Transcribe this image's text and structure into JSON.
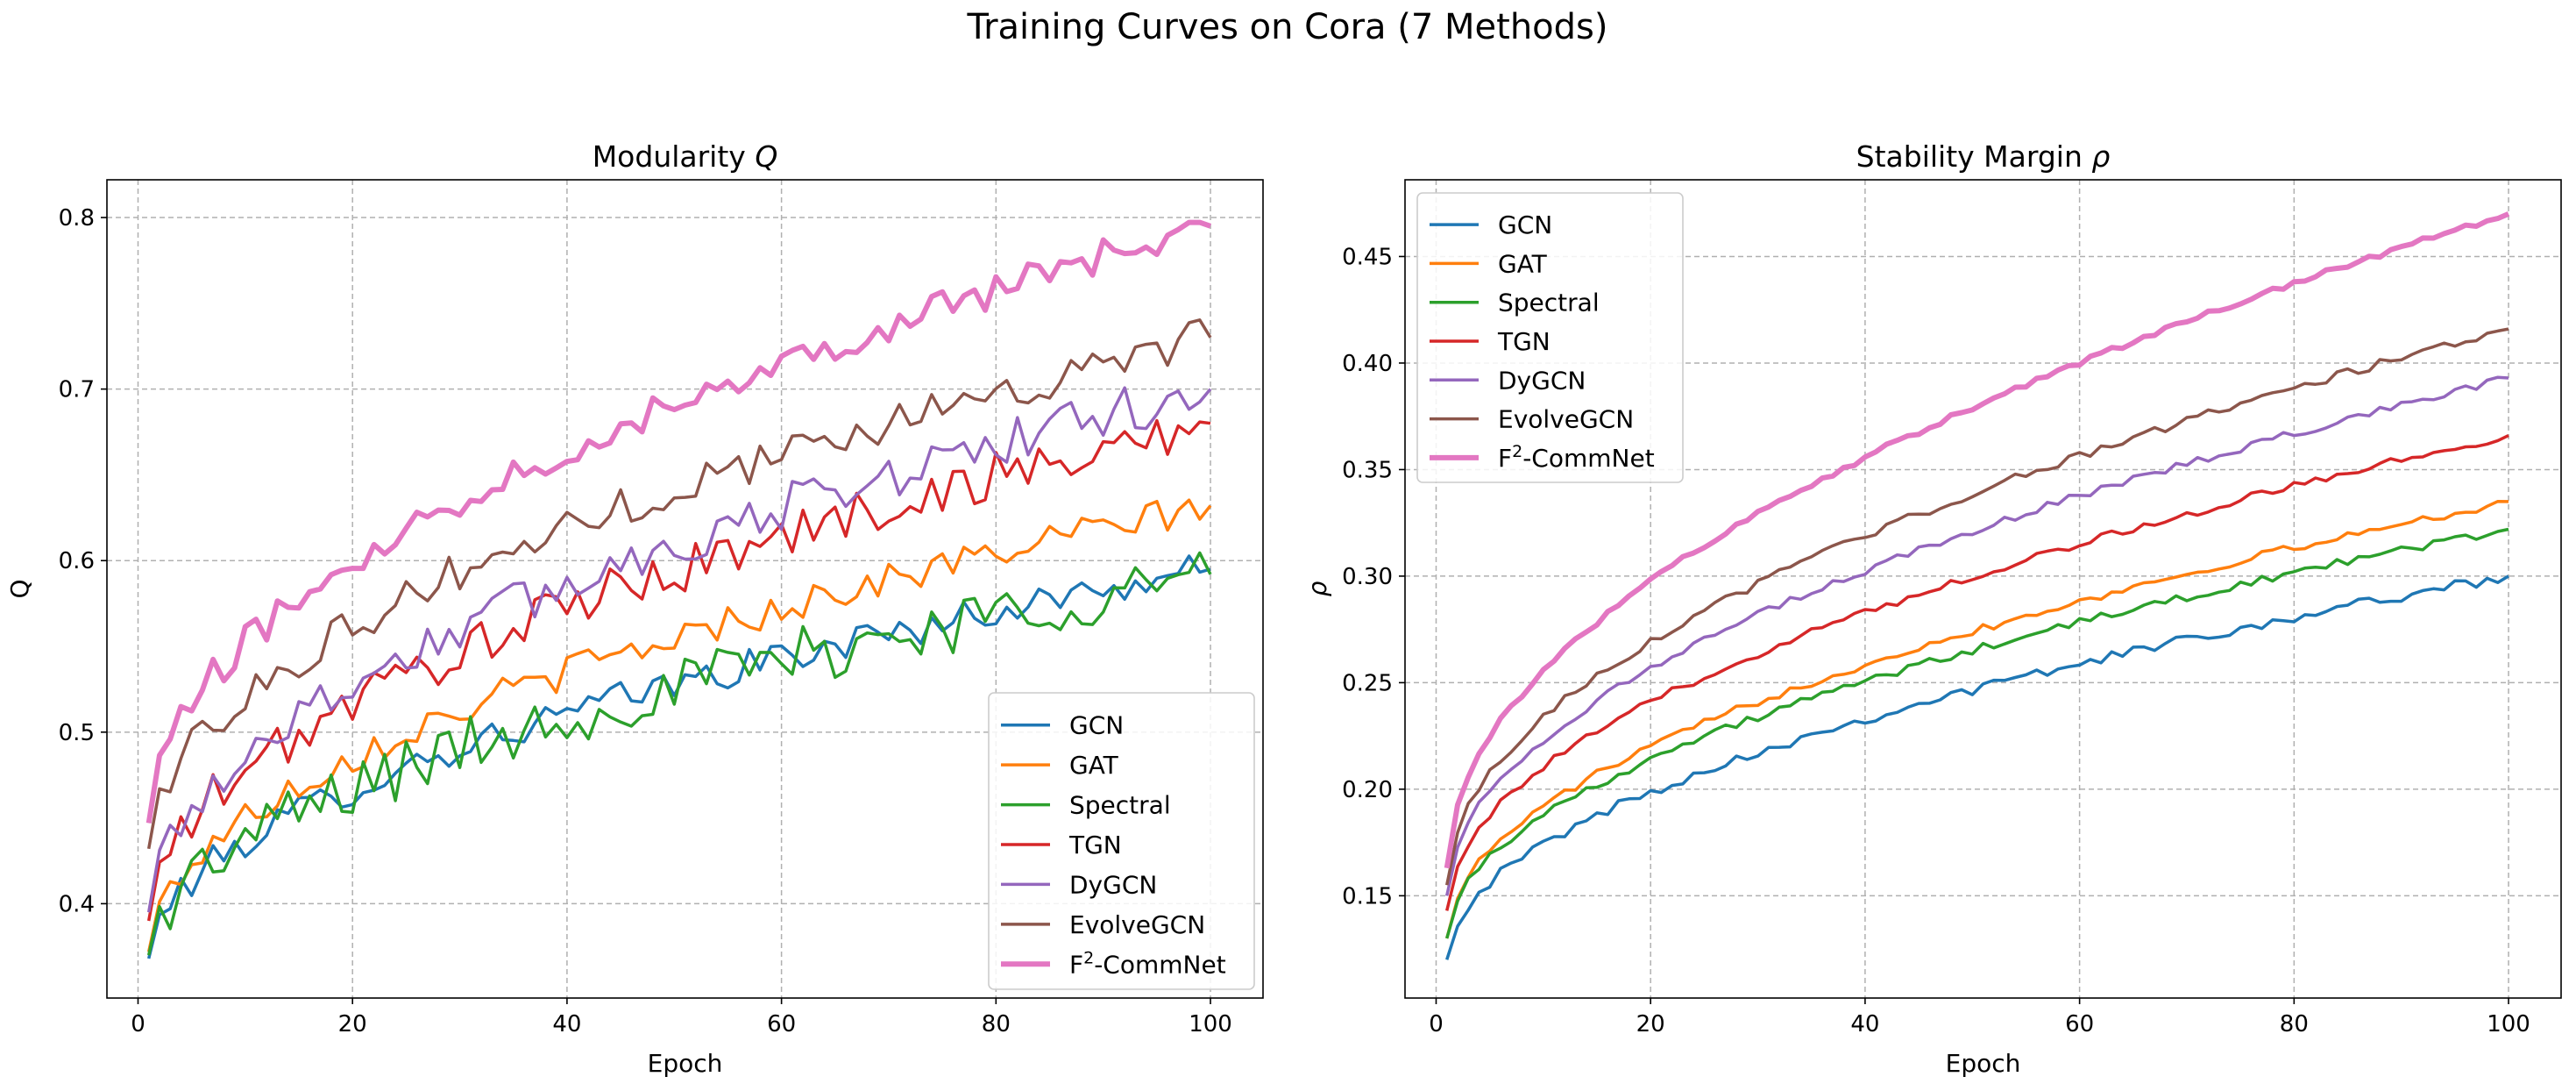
{
  "chart_data": {
    "suptitle": "Training Curves on Cora (7 Methods)",
    "methods": [
      "GCN",
      "GAT",
      "Spectral",
      "TGN",
      "DyGCN",
      "EvolveGCN",
      "F²-CommNet"
    ],
    "colors": {
      "GCN": "#1f77b4",
      "GAT": "#ff7f0e",
      "Spectral": "#2ca02c",
      "TGN": "#d62728",
      "DyGCN": "#9467bd",
      "EvolveGCN": "#8c564b",
      "F²-CommNet": "#e377c2"
    },
    "charts": [
      {
        "type": "line",
        "title": "Modularity Q",
        "xlabel": "Epoch",
        "ylabel": "Q",
        "xlim": [
          -2.9,
          104.9
        ],
        "ylim": [
          0.345,
          0.822
        ],
        "xticks": [
          0,
          20,
          40,
          60,
          80,
          100
        ],
        "yticks": [
          0.4,
          0.5,
          0.6,
          0.7,
          0.8
        ],
        "tick_decimals": 1,
        "grid": true,
        "legend_position": "lower-right",
        "noise": true,
        "x": [
          1,
          100
        ],
        "series": [
          {
            "name": "GCN",
            "start": 0.368,
            "end": 0.595,
            "noise": 0.01
          },
          {
            "name": "GAT",
            "start": 0.372,
            "end": 0.632,
            "noise": 0.01
          },
          {
            "name": "Spectral",
            "start": 0.37,
            "end": 0.592,
            "noise": 0.018
          },
          {
            "name": "TGN",
            "start": 0.39,
            "end": 0.68,
            "noise": 0.014
          },
          {
            "name": "DyGCN",
            "start": 0.395,
            "end": 0.7,
            "noise": 0.014
          },
          {
            "name": "EvolveGCN",
            "start": 0.432,
            "end": 0.73,
            "noise": 0.012
          },
          {
            "name": "F²-CommNet",
            "start": 0.447,
            "end": 0.795,
            "noise": 0.01
          }
        ]
      },
      {
        "type": "line",
        "title": "Stability Margin ρ",
        "xlabel": "Epoch",
        "ylabel": "ρ",
        "xlim": [
          -2.9,
          104.9
        ],
        "ylim": [
          0.102,
          0.486
        ],
        "xticks": [
          0,
          20,
          40,
          60,
          80,
          100
        ],
        "yticks": [
          0.15,
          0.2,
          0.25,
          0.3,
          0.35,
          0.4,
          0.45
        ],
        "tick_decimals": 2,
        "grid": true,
        "legend_position": "top-left",
        "noise": true,
        "x": [
          1,
          100
        ],
        "series": [
          {
            "name": "GCN",
            "start": 0.12,
            "end": 0.3,
            "noise": 0.0025
          },
          {
            "name": "GAT",
            "start": 0.13,
            "end": 0.335,
            "noise": 0.002
          },
          {
            "name": "Spectral",
            "start": 0.13,
            "end": 0.322,
            "noise": 0.002
          },
          {
            "name": "TGN",
            "start": 0.143,
            "end": 0.366,
            "noise": 0.002
          },
          {
            "name": "DyGCN",
            "start": 0.15,
            "end": 0.393,
            "noise": 0.002
          },
          {
            "name": "EvolveGCN",
            "start": 0.155,
            "end": 0.416,
            "noise": 0.002
          },
          {
            "name": "F²-CommNet",
            "start": 0.163,
            "end": 0.47,
            "noise": 0.0015
          }
        ]
      }
    ]
  }
}
